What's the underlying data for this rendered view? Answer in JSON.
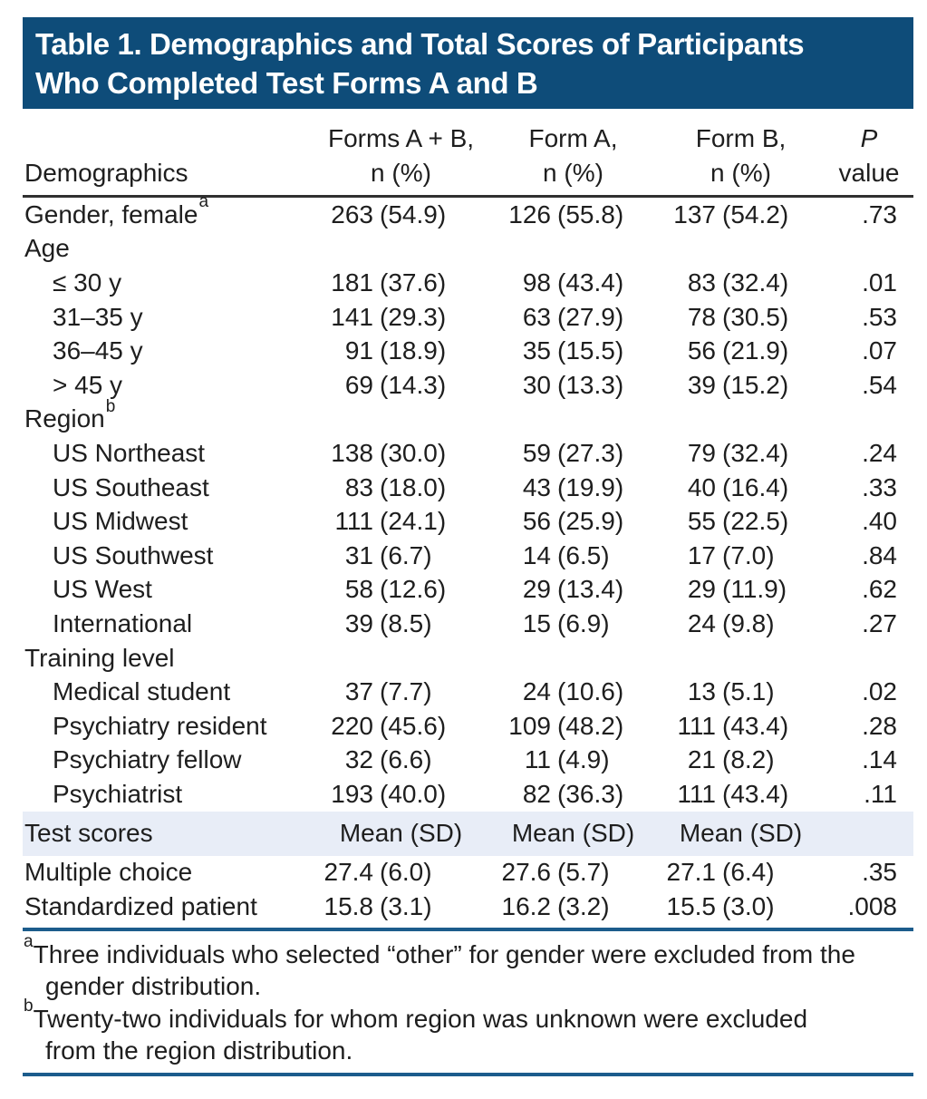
{
  "title": {
    "line1": "Table 1. Demographics and Total Scores of Participants",
    "line2": "Who Completed Test Forms A and B"
  },
  "columns": {
    "demographics": "Demographics",
    "forms_ab_line1": "Forms A + B,",
    "forms_ab_line2": "n (%)",
    "form_a_line1": "Form A,",
    "form_a_line2": "n (%)",
    "form_b_line1": "Form B,",
    "form_b_line2": "n (%)",
    "p_line1": "P",
    "p_line2": "value"
  },
  "rows": [
    {
      "label": "Gender, female",
      "sup": "a",
      "indent": false,
      "c2": [
        "263",
        "(54.9)"
      ],
      "c3": [
        "126",
        "(55.8)"
      ],
      "c4": [
        "137",
        "(54.2)"
      ],
      "p": ".73"
    },
    {
      "label": "Age",
      "indent": false
    },
    {
      "label": "≤ 30 y",
      "indent": true,
      "c2": [
        "181",
        "(37.6)"
      ],
      "c3": [
        "98",
        "(43.4)"
      ],
      "c4": [
        "83",
        "(32.4)"
      ],
      "p": ".01"
    },
    {
      "label": "31–35 y",
      "indent": true,
      "c2": [
        "141",
        "(29.3)"
      ],
      "c3": [
        "63",
        "(27.9)"
      ],
      "c4": [
        "78",
        "(30.5)"
      ],
      "p": ".53"
    },
    {
      "label": "36–45 y",
      "indent": true,
      "c2": [
        "91",
        "(18.9)"
      ],
      "c3": [
        "35",
        "(15.5)"
      ],
      "c4": [
        "56",
        "(21.9)"
      ],
      "p": ".07"
    },
    {
      "label": "> 45 y",
      "indent": true,
      "c2": [
        "69",
        "(14.3)"
      ],
      "c3": [
        "30",
        "(13.3)"
      ],
      "c4": [
        "39",
        "(15.2)"
      ],
      "p": ".54"
    },
    {
      "label": "Region",
      "sup": "b",
      "indent": false
    },
    {
      "label": "US Northeast",
      "indent": true,
      "c2": [
        "138",
        "(30.0)"
      ],
      "c3": [
        "59",
        "(27.3)"
      ],
      "c4": [
        "79",
        "(32.4)"
      ],
      "p": ".24"
    },
    {
      "label": "US Southeast",
      "indent": true,
      "c2": [
        "83",
        "(18.0)"
      ],
      "c3": [
        "43",
        "(19.9)"
      ],
      "c4": [
        "40",
        "(16.4)"
      ],
      "p": ".33"
    },
    {
      "label": "US Midwest",
      "indent": true,
      "c2": [
        "111",
        "(24.1)"
      ],
      "c3": [
        "56",
        "(25.9)"
      ],
      "c4": [
        "55",
        "(22.5)"
      ],
      "p": ".40"
    },
    {
      "label": "US Southwest",
      "indent": true,
      "c2": [
        "31",
        "(6.7)"
      ],
      "c3": [
        "14",
        "(6.5)"
      ],
      "c4": [
        "17",
        "(7.0)"
      ],
      "p": ".84"
    },
    {
      "label": "US West",
      "indent": true,
      "c2": [
        "58",
        "(12.6)"
      ],
      "c3": [
        "29",
        "(13.4)"
      ],
      "c4": [
        "29",
        "(11.9)"
      ],
      "p": ".62"
    },
    {
      "label": "International",
      "indent": true,
      "c2": [
        "39",
        "(8.5)"
      ],
      "c3": [
        "15",
        "(6.9)"
      ],
      "c4": [
        "24",
        "(9.8)"
      ],
      "p": ".27"
    },
    {
      "label": "Training level",
      "indent": false
    },
    {
      "label": "Medical student",
      "indent": true,
      "c2": [
        "37",
        "(7.7)"
      ],
      "c3": [
        "24",
        "(10.6)"
      ],
      "c4": [
        "13",
        "(5.1)"
      ],
      "p": ".02"
    },
    {
      "label": "Psychiatry resident",
      "indent": true,
      "c2": [
        "220",
        "(45.6)"
      ],
      "c3": [
        "109",
        "(48.2)"
      ],
      "c4": [
        "111",
        "(43.4)"
      ],
      "p": ".28"
    },
    {
      "label": "Psychiatry fellow",
      "indent": true,
      "c2": [
        "32",
        "(6.6)"
      ],
      "c3": [
        "11",
        "(4.9)"
      ],
      "c4": [
        "21",
        "(8.2)"
      ],
      "p": ".14"
    },
    {
      "label": "Psychiatrist",
      "indent": true,
      "c2": [
        "193",
        "(40.0)"
      ],
      "c3": [
        "82",
        "(36.3)"
      ],
      "c4": [
        "111",
        "(43.4)"
      ],
      "p": ".11"
    }
  ],
  "test_scores": {
    "label": "Test scores",
    "cells": [
      "Mean (SD)",
      "Mean (SD)",
      "Mean (SD)"
    ]
  },
  "score_rows": [
    {
      "label": "Multiple choice",
      "indent": false,
      "c2": [
        "27.4",
        "(6.0)"
      ],
      "c3": [
        "27.6",
        "(5.7)"
      ],
      "c4": [
        "27.1",
        "(6.4)"
      ],
      "p": ".35"
    },
    {
      "label": "Standardized patient",
      "indent": false,
      "c2": [
        "15.8",
        "(3.1)"
      ],
      "c3": [
        "16.2",
        "(3.2)"
      ],
      "c4": [
        "15.5",
        "(3.0)"
      ],
      "p": ".008"
    }
  ],
  "footnotes": [
    {
      "sup": "a",
      "line1": "Three individuals who selected “other” for gender were excluded from the",
      "line2": "gender distribution."
    },
    {
      "sup": "b",
      "line1": "Twenty-two individuals for whom region was unknown were excluded",
      "line2": "from the region distribution."
    }
  ],
  "colors": {
    "navy": "#0e4c79",
    "rule_blue": "#1c5c8c",
    "rule_dark": "#303030",
    "band_bg": "#e8edf7",
    "text": "#1e1e1e",
    "title_text": "#ffffff"
  }
}
